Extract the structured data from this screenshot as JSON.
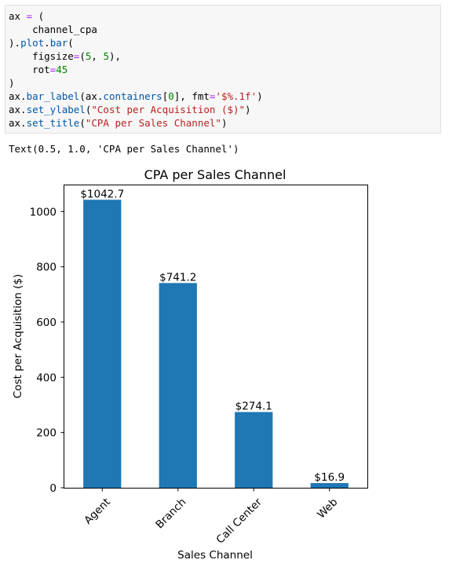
{
  "code_cell": {
    "lines": [
      [
        {
          "t": "ax "
        },
        {
          "t": "=",
          "c": "op"
        },
        {
          "t": " ("
        }
      ],
      [
        {
          "t": "    channel_cpa"
        }
      ],
      [
        {
          "t": ")."
        },
        {
          "t": "plot",
          "c": "fn"
        },
        {
          "t": "."
        },
        {
          "t": "bar",
          "c": "fn"
        },
        {
          "t": "("
        }
      ],
      [
        {
          "t": "    figsize"
        },
        {
          "t": "=",
          "c": "op"
        },
        {
          "t": "("
        },
        {
          "t": "5",
          "c": "num"
        },
        {
          "t": ", "
        },
        {
          "t": "5",
          "c": "num"
        },
        {
          "t": "),"
        }
      ],
      [
        {
          "t": "    rot"
        },
        {
          "t": "=",
          "c": "op"
        },
        {
          "t": "45",
          "c": "num"
        }
      ],
      [
        {
          "t": ")"
        }
      ],
      [
        {
          "t": "ax."
        },
        {
          "t": "bar_label",
          "c": "fn"
        },
        {
          "t": "(ax."
        },
        {
          "t": "containers",
          "c": "fn"
        },
        {
          "t": "["
        },
        {
          "t": "0",
          "c": "num"
        },
        {
          "t": "], fmt"
        },
        {
          "t": "=",
          "c": "op"
        },
        {
          "t": "'$%.1f'",
          "c": "str"
        },
        {
          "t": ")"
        }
      ],
      [
        {
          "t": "ax."
        },
        {
          "t": "set_ylabel",
          "c": "fn"
        },
        {
          "t": "("
        },
        {
          "t": "\"Cost per Acquisition ($)\"",
          "c": "str"
        },
        {
          "t": ")"
        }
      ],
      [
        {
          "t": "ax."
        },
        {
          "t": "set_title",
          "c": "fn"
        },
        {
          "t": "("
        },
        {
          "t": "\"CPA per Sales Channel\"",
          "c": "str"
        },
        {
          "t": ")"
        }
      ]
    ]
  },
  "output_text": "Text(0.5, 1.0, 'CPA per Sales Channel')",
  "colors": {
    "bar": "#1f77b4"
  },
  "chart_data": {
    "type": "bar",
    "title": "CPA per Sales Channel",
    "xlabel": "Sales Channel",
    "ylabel": "Cost per Acquisition ($)",
    "categories": [
      "Agent",
      "Branch",
      "Call Center",
      "Web"
    ],
    "values": [
      1042.7,
      741.2,
      274.1,
      16.9
    ],
    "bar_labels": [
      "$1042.7",
      "$741.2",
      "$274.1",
      "$16.9"
    ],
    "ylim": [
      0,
      1094.8
    ],
    "yticks": [
      0,
      200,
      400,
      600,
      800,
      1000
    ],
    "ytick_labels": [
      "0",
      "200",
      "400",
      "600",
      "800",
      "1000"
    ],
    "xtick_rotation_deg": 45,
    "grid": false
  }
}
